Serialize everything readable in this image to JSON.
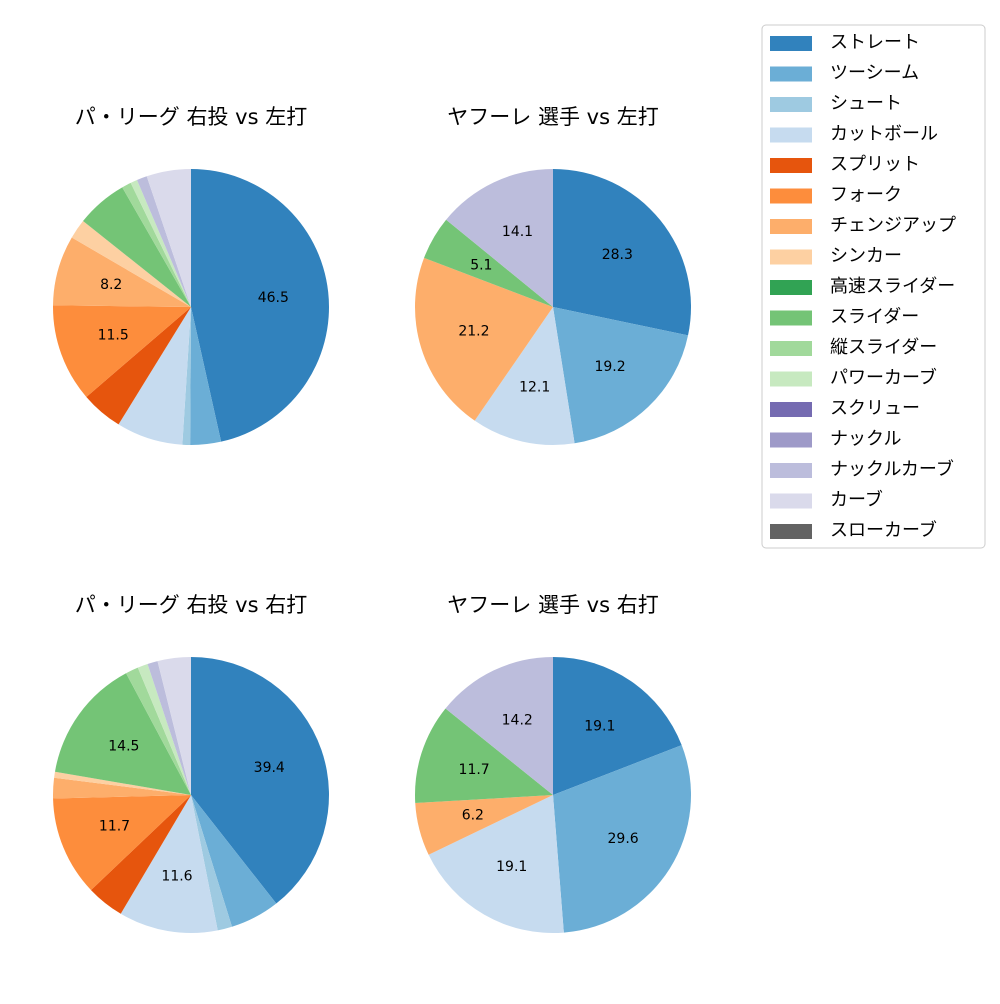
{
  "legend": {
    "labels": [
      "ストレート",
      "ツーシーム",
      "シュート",
      "カットボール",
      "スプリット",
      "フォーク",
      "チェンジアップ",
      "シンカー",
      "高速スライダー",
      "スライダー",
      "縦スライダー",
      "パワーカーブ",
      "スクリュー",
      "ナックル",
      "ナックルカーブ",
      "カーブ",
      "スローカーブ"
    ],
    "colors": [
      "#3182bd",
      "#6baed6",
      "#9ecae1",
      "#c6dbef",
      "#e6550d",
      "#fd8d3c",
      "#fdae6b",
      "#fdd0a2",
      "#31a354",
      "#74c476",
      "#a1d99b",
      "#c7e9c0",
      "#756bb1",
      "#9e9ac8",
      "#bcbddc",
      "#dadaeb",
      "#636363"
    ]
  },
  "chart_data": [
    {
      "type": "pie",
      "title": "パ・リーグ 右投 vs 左打",
      "categories": [
        "ストレート",
        "ツーシーム",
        "シュート",
        "カットボール",
        "スプリット",
        "フォーク",
        "チェンジアップ",
        "シンカー",
        "スライダー",
        "縦スライダー",
        "パワーカーブ",
        "ナックルカーブ",
        "カーブ"
      ],
      "values": [
        46.5,
        3.6,
        0.9,
        7.8,
        4.9,
        11.5,
        8.2,
        2.3,
        6.0,
        1.1,
        0.8,
        1.2,
        5.2
      ],
      "value_labels": [
        "46.5",
        null,
        null,
        null,
        null,
        "11.5",
        "8.2",
        null,
        null,
        null,
        null,
        null,
        null
      ]
    },
    {
      "type": "pie",
      "title": "ヤフーレ 選手 vs 左打",
      "categories": [
        "ストレート",
        "ツーシーム",
        "カットボール",
        "チェンジアップ",
        "スライダー",
        "ナックルカーブ"
      ],
      "values": [
        28.3,
        19.2,
        12.1,
        21.2,
        5.1,
        14.1
      ],
      "value_labels": [
        "28.3",
        "19.2",
        "12.1",
        "21.2",
        "5.1",
        "14.1"
      ]
    },
    {
      "type": "pie",
      "title": "パ・リーグ 右投 vs 右打",
      "categories": [
        "ストレート",
        "ツーシーム",
        "シュート",
        "カットボール",
        "スプリット",
        "フォーク",
        "チェンジアップ",
        "シンカー",
        "スライダー",
        "縦スライダー",
        "パワーカーブ",
        "ナックルカーブ",
        "カーブ"
      ],
      "values": [
        39.4,
        5.8,
        1.7,
        11.6,
        4.4,
        11.7,
        2.4,
        0.7,
        14.5,
        1.5,
        1.2,
        1.2,
        3.9
      ],
      "value_labels": [
        "39.4",
        null,
        null,
        "11.6",
        null,
        "11.7",
        null,
        null,
        "14.5",
        null,
        null,
        null,
        null
      ]
    },
    {
      "type": "pie",
      "title": "ヤフーレ 選手 vs 右打",
      "categories": [
        "ストレート",
        "ツーシーム",
        "カットボール",
        "チェンジアップ",
        "スライダー",
        "ナックルカーブ"
      ],
      "values": [
        19.1,
        29.6,
        19.1,
        6.2,
        11.7,
        14.2
      ],
      "value_labels": [
        "19.1",
        "29.6",
        "19.1",
        "6.2",
        "11.7",
        "14.2"
      ]
    }
  ]
}
